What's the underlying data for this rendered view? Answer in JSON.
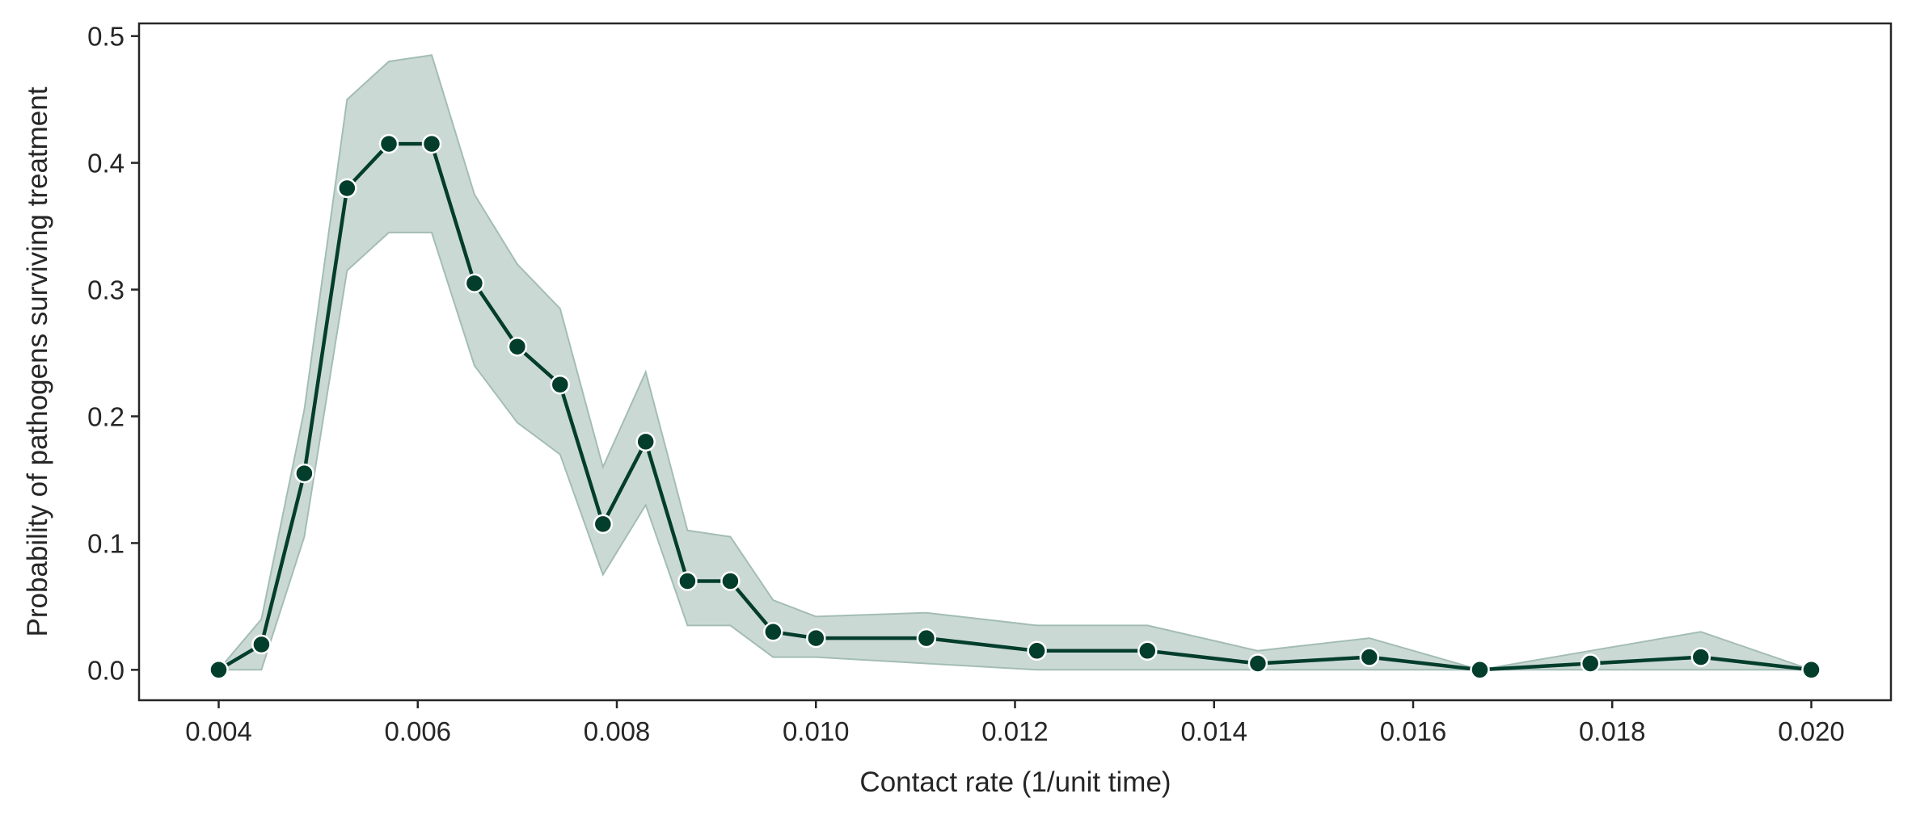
{
  "chart_data": {
    "type": "line",
    "title": "",
    "xlabel": "Contact rate (1/unit time)",
    "ylabel": "Probability of pathogens surviving treatment",
    "xlim": [
      0.0032,
      0.0208
    ],
    "ylim": [
      -0.024,
      0.51
    ],
    "x_ticks": [
      0.004,
      0.006,
      0.008,
      0.01,
      0.012,
      0.014,
      0.016,
      0.018,
      0.02
    ],
    "x_tick_labels": [
      "0.004",
      "0.006",
      "0.008",
      "0.010",
      "0.012",
      "0.014",
      "0.016",
      "0.018",
      "0.020"
    ],
    "y_ticks": [
      0.0,
      0.1,
      0.2,
      0.3,
      0.4,
      0.5
    ],
    "y_tick_labels": [
      "0.0",
      "0.1",
      "0.2",
      "0.3",
      "0.4",
      "0.5"
    ],
    "grid": false,
    "colors": {
      "line": "#033d2c",
      "marker_fill": "#033d2c",
      "marker_edge": "#ffffff",
      "band_fill": "#cbd9d4",
      "band_edge": "#a3bdb4",
      "axes": "#262626"
    },
    "series": [
      {
        "x": [
          0.004,
          0.00443,
          0.00486,
          0.00529,
          0.00571,
          0.00614,
          0.00657,
          0.007,
          0.00743,
          0.00786,
          0.00829,
          0.00871,
          0.00914,
          0.00957,
          0.01,
          0.01111,
          0.01222,
          0.01333,
          0.01444,
          0.01556,
          0.01667,
          0.01778,
          0.01889,
          0.02
        ],
        "values": [
          0.0,
          0.02,
          0.155,
          0.38,
          0.415,
          0.415,
          0.305,
          0.255,
          0.225,
          0.115,
          0.18,
          0.07,
          0.07,
          0.03,
          0.025,
          0.025,
          0.015,
          0.015,
          0.005,
          0.01,
          0.0,
          0.005,
          0.01,
          0.0
        ],
        "ci_low": [
          0.0,
          0.0,
          0.105,
          0.315,
          0.345,
          0.345,
          0.24,
          0.195,
          0.17,
          0.075,
          0.13,
          0.035,
          0.035,
          0.01,
          0.01,
          0.005,
          0.0,
          0.0,
          0.0,
          0.0,
          0.0,
          0.0,
          0.0,
          0.0
        ],
        "ci_high": [
          0.0,
          0.04,
          0.205,
          0.45,
          0.48,
          0.485,
          0.375,
          0.32,
          0.285,
          0.16,
          0.235,
          0.11,
          0.105,
          0.055,
          0.042,
          0.045,
          0.035,
          0.035,
          0.015,
          0.025,
          0.0,
          0.015,
          0.03,
          0.0
        ]
      }
    ]
  }
}
